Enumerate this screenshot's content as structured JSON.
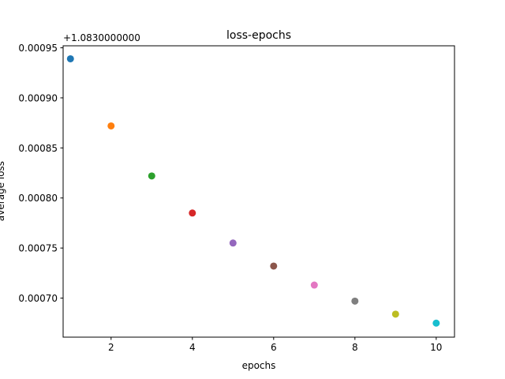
{
  "chart_data": {
    "type": "scatter",
    "title": "loss-epochs",
    "xlabel": "epochs",
    "ylabel": "average loss",
    "y_offset_label": "+1.0830000000",
    "xlim": [
      0.82,
      10.45
    ],
    "ylim": [
      0.000661,
      0.000952
    ],
    "x_ticks": [
      2,
      4,
      6,
      8,
      10
    ],
    "x_tick_labels": [
      "2",
      "4",
      "6",
      "8",
      "10"
    ],
    "y_ticks": [
      0.0007,
      0.00075,
      0.0008,
      0.00085,
      0.0009,
      0.00095
    ],
    "y_tick_labels": [
      "0.00070",
      "0.00075",
      "0.00080",
      "0.00085",
      "0.00090",
      "0.00095"
    ],
    "grid": false,
    "x": [
      1,
      2,
      3,
      4,
      5,
      6,
      7,
      8,
      9,
      10
    ],
    "y": [
      0.000939,
      0.000872,
      0.000822,
      0.000785,
      0.000755,
      0.000732,
      0.000713,
      0.000697,
      0.000684,
      0.000675
    ],
    "colors": [
      "#1f77b4",
      "#ff7f0e",
      "#2ca02c",
      "#d62728",
      "#9467bd",
      "#8c564b",
      "#e377c2",
      "#7f7f7f",
      "#bcbd22",
      "#17becf"
    ]
  }
}
